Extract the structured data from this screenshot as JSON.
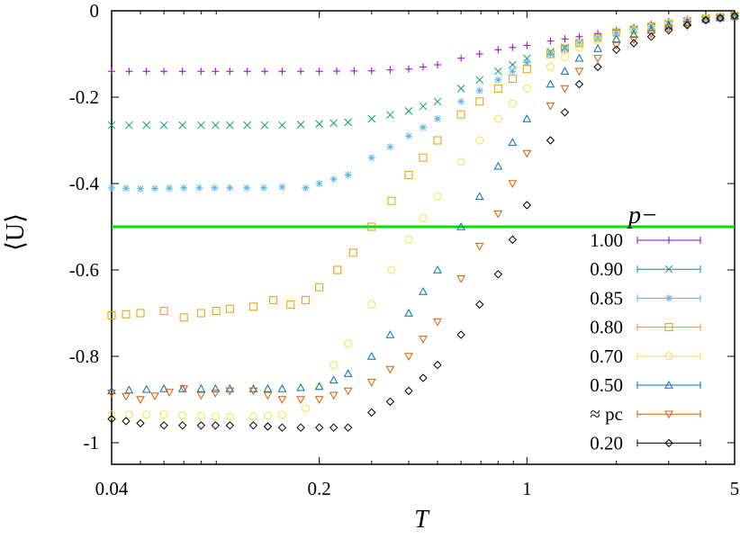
{
  "chart_data": {
    "type": "scatter",
    "xscale": "log",
    "xlim": [
      0.04,
      5
    ],
    "ylim": [
      -1.05,
      0
    ],
    "xlabel": "T",
    "ylabel": "⟨U⟩",
    "xticks": [
      {
        "value": 0.04,
        "label": "0.04"
      },
      {
        "value": 0.2,
        "label": "0.2"
      },
      {
        "value": 1,
        "label": "1"
      },
      {
        "value": 5,
        "label": "5"
      }
    ],
    "yticks": [
      {
        "value": 0,
        "label": "0"
      },
      {
        "value": -0.2,
        "label": "-0.2"
      },
      {
        "value": -0.4,
        "label": "-0.4"
      },
      {
        "value": -0.6,
        "label": "-0.6"
      },
      {
        "value": -0.8,
        "label": "-0.8"
      },
      {
        "value": -1,
        "label": "-1"
      }
    ],
    "legend_title": "p−",
    "legend_position": "right",
    "reference_line": {
      "y": -0.5,
      "color": "#00e000"
    },
    "series": [
      {
        "name": "1.00",
        "marker": "plus",
        "color": "#9400d3",
        "points": [
          [
            0.04,
            -0.14
          ],
          [
            0.06,
            -0.14
          ],
          [
            0.08,
            -0.14
          ],
          [
            0.1,
            -0.14
          ],
          [
            0.15,
            -0.14
          ],
          [
            0.2,
            -0.14
          ],
          [
            0.3,
            -0.139
          ],
          [
            0.4,
            -0.135
          ],
          [
            0.5,
            -0.125
          ],
          [
            0.6,
            -0.11
          ],
          [
            0.8,
            -0.09
          ],
          [
            1.0,
            -0.08
          ],
          [
            1.2,
            -0.07
          ],
          [
            1.5,
            -0.06
          ],
          [
            2.0,
            -0.045
          ],
          [
            3.0,
            -0.025
          ],
          [
            4.0,
            -0.015
          ],
          [
            5.0,
            -0.01
          ]
        ]
      },
      {
        "name": "0.90",
        "marker": "x",
        "color": "#009e73",
        "points": [
          [
            0.04,
            -0.265
          ],
          [
            0.06,
            -0.265
          ],
          [
            0.08,
            -0.265
          ],
          [
            0.1,
            -0.265
          ],
          [
            0.15,
            -0.265
          ],
          [
            0.2,
            -0.262
          ],
          [
            0.25,
            -0.258
          ],
          [
            0.3,
            -0.25
          ],
          [
            0.4,
            -0.232
          ],
          [
            0.5,
            -0.21
          ],
          [
            0.6,
            -0.18
          ],
          [
            0.8,
            -0.14
          ],
          [
            1.0,
            -0.11
          ],
          [
            1.2,
            -0.095
          ],
          [
            1.5,
            -0.075
          ],
          [
            2.0,
            -0.05
          ],
          [
            3.0,
            -0.03
          ],
          [
            4.0,
            -0.018
          ],
          [
            5.0,
            -0.012
          ]
        ]
      },
      {
        "name": "0.85",
        "marker": "star",
        "color": "#56b4e9",
        "points": [
          [
            0.04,
            -0.41
          ],
          [
            0.05,
            -0.412
          ],
          [
            0.07,
            -0.41
          ],
          [
            0.1,
            -0.41
          ],
          [
            0.13,
            -0.41
          ],
          [
            0.15,
            -0.408
          ],
          [
            0.18,
            -0.41
          ],
          [
            0.2,
            -0.4
          ],
          [
            0.25,
            -0.38
          ],
          [
            0.3,
            -0.34
          ],
          [
            0.4,
            -0.29
          ],
          [
            0.5,
            -0.25
          ],
          [
            0.6,
            -0.21
          ],
          [
            0.8,
            -0.16
          ],
          [
            1.0,
            -0.12
          ],
          [
            1.2,
            -0.1
          ],
          [
            1.5,
            -0.075
          ],
          [
            2.0,
            -0.05
          ],
          [
            3.0,
            -0.03
          ],
          [
            4.0,
            -0.018
          ],
          [
            5.0,
            -0.012
          ]
        ]
      },
      {
        "name": "0.80",
        "marker": "square",
        "color": "#e69f00",
        "points": [
          [
            0.04,
            -0.705
          ],
          [
            0.05,
            -0.7
          ],
          [
            0.06,
            -0.695
          ],
          [
            0.07,
            -0.71
          ],
          [
            0.08,
            -0.7
          ],
          [
            0.09,
            -0.695
          ],
          [
            0.1,
            -0.69
          ],
          [
            0.12,
            -0.685
          ],
          [
            0.14,
            -0.67
          ],
          [
            0.16,
            -0.68
          ],
          [
            0.18,
            -0.67
          ],
          [
            0.2,
            -0.64
          ],
          [
            0.23,
            -0.6
          ],
          [
            0.26,
            -0.56
          ],
          [
            0.3,
            -0.5
          ],
          [
            0.35,
            -0.44
          ],
          [
            0.4,
            -0.38
          ],
          [
            0.5,
            -0.3
          ],
          [
            0.6,
            -0.24
          ],
          [
            0.8,
            -0.18
          ],
          [
            1.0,
            -0.135
          ],
          [
            1.2,
            -0.1
          ],
          [
            1.5,
            -0.075
          ],
          [
            2.0,
            -0.05
          ],
          [
            3.0,
            -0.03
          ],
          [
            4.0,
            -0.018
          ],
          [
            5.0,
            -0.012
          ]
        ]
      },
      {
        "name": "0.70",
        "marker": "circle",
        "color": "#f0e442",
        "points": [
          [
            0.04,
            -0.935
          ],
          [
            0.06,
            -0.935
          ],
          [
            0.08,
            -0.938
          ],
          [
            0.1,
            -0.94
          ],
          [
            0.12,
            -0.94
          ],
          [
            0.15,
            -0.935
          ],
          [
            0.18,
            -0.92
          ],
          [
            0.2,
            -0.87
          ],
          [
            0.25,
            -0.77
          ],
          [
            0.3,
            -0.68
          ],
          [
            0.35,
            -0.6
          ],
          [
            0.4,
            -0.53
          ],
          [
            0.5,
            -0.43
          ],
          [
            0.6,
            -0.35
          ],
          [
            0.8,
            -0.25
          ],
          [
            1.0,
            -0.18
          ],
          [
            1.2,
            -0.13
          ],
          [
            1.5,
            -0.085
          ],
          [
            2.0,
            -0.055
          ],
          [
            3.0,
            -0.03
          ],
          [
            4.0,
            -0.018
          ],
          [
            5.0,
            -0.012
          ]
        ]
      },
      {
        "name": "0.50",
        "marker": "triangle-up",
        "color": "#0072b2",
        "points": [
          [
            0.04,
            -0.88
          ],
          [
            0.06,
            -0.875
          ],
          [
            0.08,
            -0.875
          ],
          [
            0.1,
            -0.875
          ],
          [
            0.12,
            -0.875
          ],
          [
            0.15,
            -0.875
          ],
          [
            0.2,
            -0.87
          ],
          [
            0.25,
            -0.84
          ],
          [
            0.3,
            -0.8
          ],
          [
            0.4,
            -0.7
          ],
          [
            0.5,
            -0.6
          ],
          [
            0.6,
            -0.5
          ],
          [
            0.8,
            -0.36
          ],
          [
            1.0,
            -0.25
          ],
          [
            1.2,
            -0.17
          ],
          [
            1.5,
            -0.11
          ],
          [
            2.0,
            -0.065
          ],
          [
            3.0,
            -0.035
          ],
          [
            4.0,
            -0.02
          ],
          [
            5.0,
            -0.012
          ]
        ]
      },
      {
        "name": "≈ pc",
        "marker": "triangle-down",
        "color": "#d55e00",
        "points": [
          [
            0.04,
            -0.885
          ],
          [
            0.05,
            -0.9
          ],
          [
            0.07,
            -0.875
          ],
          [
            0.08,
            -0.89
          ],
          [
            0.1,
            -0.88
          ],
          [
            0.12,
            -0.88
          ],
          [
            0.15,
            -0.9
          ],
          [
            0.2,
            -0.9
          ],
          [
            0.25,
            -0.88
          ],
          [
            0.3,
            -0.86
          ],
          [
            0.4,
            -0.8
          ],
          [
            0.5,
            -0.72
          ],
          [
            0.6,
            -0.62
          ],
          [
            0.8,
            -0.47
          ],
          [
            1.0,
            -0.33
          ],
          [
            1.2,
            -0.22
          ],
          [
            1.5,
            -0.14
          ],
          [
            2.0,
            -0.08
          ],
          [
            3.0,
            -0.04
          ],
          [
            4.0,
            -0.022
          ],
          [
            5.0,
            -0.012
          ]
        ]
      },
      {
        "name": "0.20",
        "marker": "diamond",
        "color": "#000000",
        "points": [
          [
            0.04,
            -0.945
          ],
          [
            0.05,
            -0.955
          ],
          [
            0.06,
            -0.96
          ],
          [
            0.08,
            -0.96
          ],
          [
            0.1,
            -0.96
          ],
          [
            0.12,
            -0.96
          ],
          [
            0.15,
            -0.965
          ],
          [
            0.2,
            -0.965
          ],
          [
            0.25,
            -0.965
          ],
          [
            0.3,
            -0.93
          ],
          [
            0.4,
            -0.88
          ],
          [
            0.5,
            -0.82
          ],
          [
            0.6,
            -0.75
          ],
          [
            0.8,
            -0.61
          ],
          [
            1.0,
            -0.45
          ],
          [
            1.2,
            -0.3
          ],
          [
            1.5,
            -0.17
          ],
          [
            2.0,
            -0.09
          ],
          [
            3.0,
            -0.045
          ],
          [
            4.0,
            -0.022
          ],
          [
            5.0,
            -0.012
          ]
        ]
      }
    ]
  }
}
